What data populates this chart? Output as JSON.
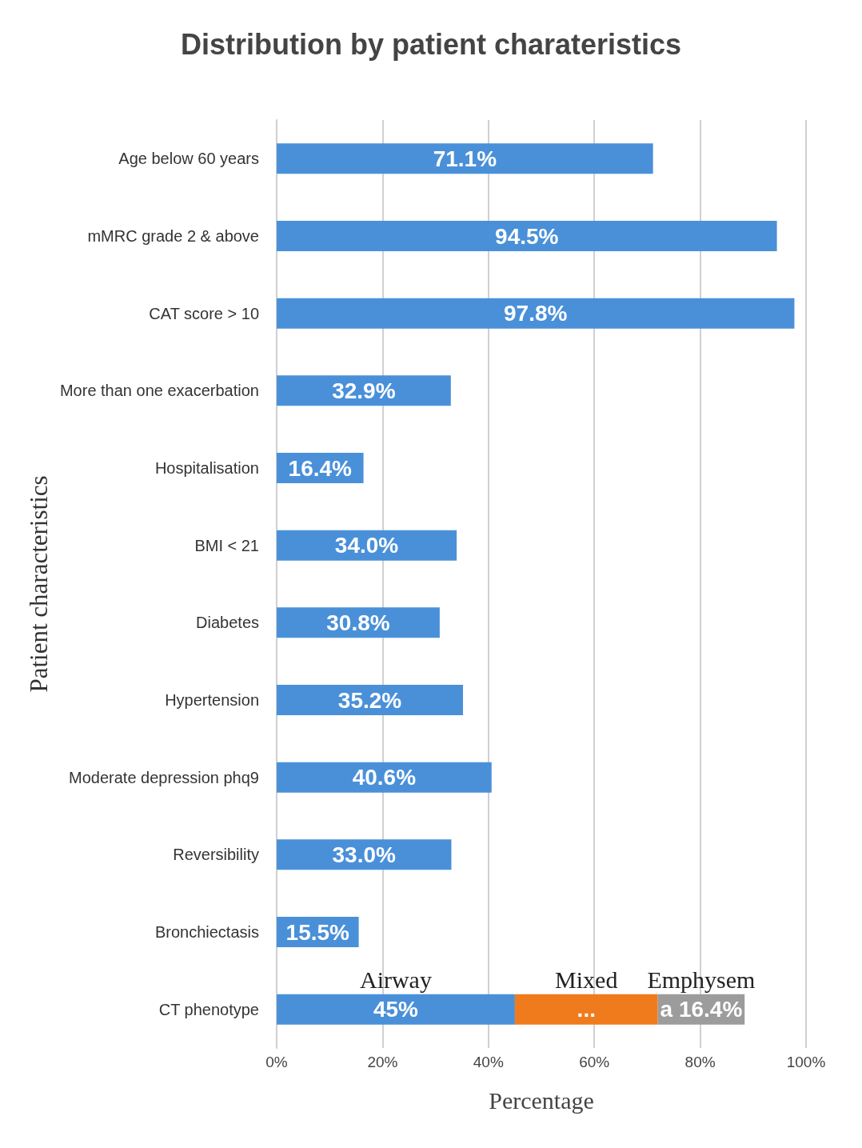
{
  "chart_data": {
    "type": "bar",
    "orientation": "horizontal",
    "stacked": true,
    "title": "Distribution by patient charateristics",
    "xlabel": "Percentage",
    "ylabel": "Patient characteristics",
    "categories": [
      "Age below 60 years",
      "mMRC grade 2 & above",
      "CAT score > 10",
      "More than one exacerbation",
      "Hospitalisation",
      "BMI < 21",
      "Diabetes",
      "Hypertension",
      "Moderate depression phq9",
      "Reversibility",
      "Bronchiectasis",
      "CT phenotype"
    ],
    "series": [
      {
        "name": "Airway",
        "color": "#4a90d9",
        "values": [
          71.1,
          94.5,
          97.8,
          32.9,
          16.4,
          34.0,
          30.8,
          35.2,
          40.6,
          33.0,
          15.5,
          45
        ],
        "value_labels": [
          "71.1%",
          "94.5%",
          "97.8%",
          "32.9%",
          "16.4%",
          "34.0%",
          "30.8%",
          "35.2%",
          "40.6%",
          "33.0%",
          "15.5%",
          "45%"
        ]
      },
      {
        "name": "Mixed",
        "color": "#f07b1c",
        "values": [
          null,
          null,
          null,
          null,
          null,
          null,
          null,
          null,
          null,
          null,
          null,
          27
        ],
        "value_labels": [
          null,
          null,
          null,
          null,
          null,
          null,
          null,
          null,
          null,
          null,
          null,
          "..."
        ]
      },
      {
        "name": "Emphysem",
        "color": "#9c9c9c",
        "values": [
          null,
          null,
          null,
          null,
          null,
          null,
          null,
          null,
          null,
          null,
          null,
          16.4
        ],
        "value_labels": [
          null,
          null,
          null,
          null,
          null,
          null,
          null,
          null,
          null,
          null,
          null,
          "a 16.4%"
        ]
      }
    ],
    "xlim": [
      0,
      100
    ],
    "xticks": [
      {
        "value": 0,
        "label": "0%"
      },
      {
        "value": 20,
        "label": "20%"
      },
      {
        "value": 40,
        "label": "40%"
      },
      {
        "value": 60,
        "label": "60%"
      },
      {
        "value": 80,
        "label": "80%"
      },
      {
        "value": 100,
        "label": "100%"
      }
    ],
    "grid": "x",
    "legend": false
  }
}
